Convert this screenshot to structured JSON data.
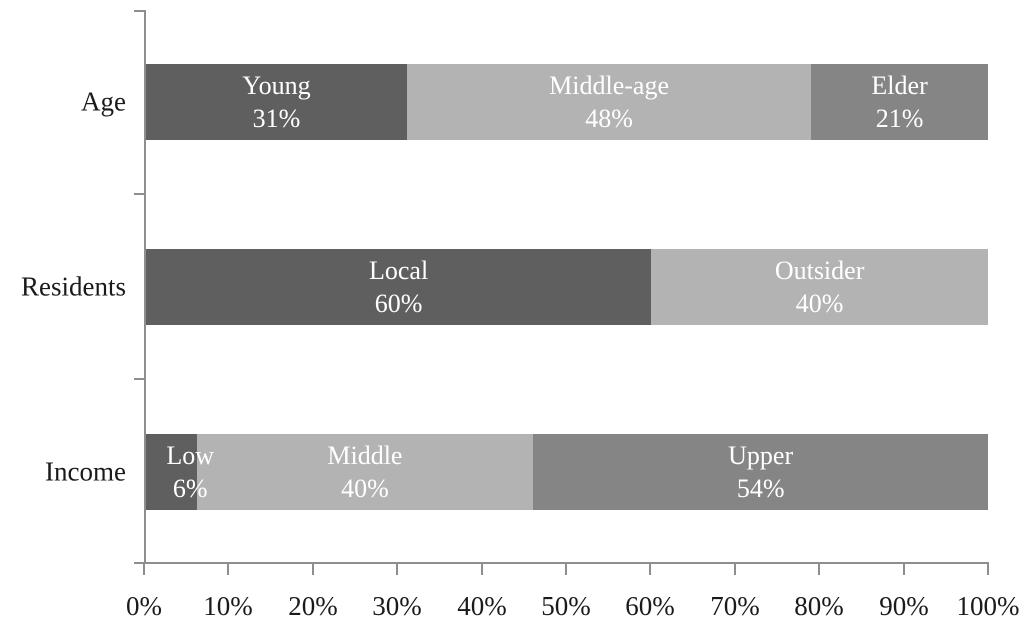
{
  "chart_data": {
    "type": "bar",
    "orientation": "horizontal",
    "stacked": true,
    "title": "",
    "xlabel": "",
    "ylabel": "",
    "xlim": [
      0,
      100
    ],
    "unit": "percent",
    "grid": false,
    "legend": "none (labels drawn inside segments)",
    "x_tick_labels": [
      "0%",
      "10%",
      "20%",
      "30%",
      "40%",
      "50%",
      "60%",
      "70%",
      "80%",
      "90%",
      "100%"
    ],
    "categories": [
      "Age",
      "Residents",
      "Income"
    ],
    "rows": [
      {
        "category": "Age",
        "segments": [
          {
            "label": "Young",
            "value": 31,
            "value_label": "31%",
            "color": "#5f5f5f"
          },
          {
            "label": "Middle-age",
            "value": 48,
            "value_label": "48%",
            "color": "#b3b3b3"
          },
          {
            "label": "Elder",
            "value": 21,
            "value_label": "21%",
            "color": "#858585"
          }
        ]
      },
      {
        "category": "Residents",
        "segments": [
          {
            "label": "Local",
            "value": 60,
            "value_label": "60%",
            "color": "#5f5f5f"
          },
          {
            "label": "Outsider",
            "value": 40,
            "value_label": "40%",
            "color": "#b3b3b3"
          }
        ]
      },
      {
        "category": "Income",
        "segments": [
          {
            "label": "Low",
            "value": 6,
            "value_label": "6%",
            "color": "#5f5f5f"
          },
          {
            "label": "Middle",
            "value": 40,
            "value_label": "40%",
            "color": "#b3b3b3"
          },
          {
            "label": "Upper",
            "value": 54,
            "value_label": "54%",
            "color": "#858585"
          }
        ]
      }
    ],
    "colors": {
      "segment_dark": "#5f5f5f",
      "segment_light": "#b3b3b3",
      "segment_medium": "#858585",
      "axis": "#8e8e8e",
      "segment_text": "#ffffff",
      "axis_text": "#1a1a1a",
      "background": "#ffffff"
    }
  }
}
